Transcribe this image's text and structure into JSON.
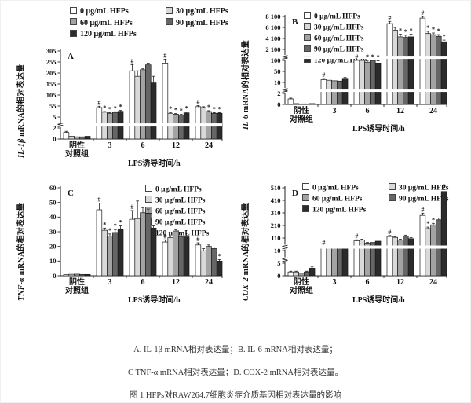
{
  "figure": {
    "legend_items": [
      "0 μg/mL HFPs",
      "30 μg/mL HFPs",
      "60 μg/mL HFPs",
      "90 μg/mL HFPs",
      "120 μg/mL HFPs"
    ],
    "series_colors": [
      "#ffffff",
      "#d9d9d9",
      "#a3a3a3",
      "#666666",
      "#2b2b2b"
    ],
    "x_label": "LPS诱导时间/h",
    "caption": {
      "line1": "A. IL-1β mRNA相对表达量；B. IL-6 mRNA相对表达量；",
      "line2": "C TNF-α mRNA相对表达量；D. COX-2 mRNA相对表达量。",
      "line3": "图 1 HFPs对RAW264.7细胞炎症介质基因相对表达量的影响"
    }
  },
  "chart_data": [
    {
      "type": "bar",
      "panel": "A",
      "ylabel_gene": "IL-1β",
      "ylabel_rest": " mRNA的相对表达量",
      "xlabel": "LPS诱导时间/h",
      "yticks": [
        0,
        2,
        5,
        55,
        105,
        155,
        205,
        255,
        305
      ],
      "ytick_labels": [
        "0",
        "2",
        "5",
        "55",
        "105",
        "155",
        "205",
        "255",
        "305"
      ],
      "breaks": [
        {
          "after": 2,
          "band": true
        }
      ],
      "legend_layout": "above-2col",
      "categories": [
        "阴性\n对照组",
        "3",
        "6",
        "12",
        "24"
      ],
      "groups": [
        {
          "values": [
            1.2,
            0.5,
            0.4,
            0.4,
            0.5
          ],
          "errors": [
            0.2,
            0.1,
            0.1,
            0.1,
            0.1
          ],
          "marks": [
            "",
            "",
            "",
            "",
            ""
          ]
        },
        {
          "values": [
            48,
            27,
            22,
            26,
            31
          ],
          "errors": [
            6,
            3,
            3,
            3,
            4
          ],
          "marks": [
            "#",
            "*",
            "*",
            "*",
            "*"
          ]
        },
        {
          "values": [
            215,
            190,
            220,
            242,
            160
          ],
          "errors": [
            28,
            25,
            6,
            8,
            30
          ],
          "marks": [
            "#",
            "",
            "",
            "",
            ""
          ]
        },
        {
          "values": [
            250,
            22,
            18,
            14,
            24
          ],
          "errors": [
            18,
            4,
            3,
            3,
            4
          ],
          "marks": [
            "#",
            "*",
            "*",
            "*",
            "*"
          ]
        },
        {
          "values": [
            52,
            48,
            30,
            22,
            22
          ],
          "errors": [
            5,
            4,
            4,
            3,
            3
          ],
          "marks": [
            "#",
            "",
            "*",
            "*",
            "*"
          ]
        }
      ]
    },
    {
      "type": "bar",
      "panel": "B",
      "ylabel_gene": "IL-6",
      "ylabel_rest": " mRNA的相对表达量",
      "xlabel": "LPS诱导时间/h",
      "yticks": [
        0,
        2,
        10,
        50,
        100,
        2100,
        4100,
        6100,
        8100
      ],
      "ytick_labels": [
        "0",
        "2",
        "10",
        "50",
        "100",
        "2 100",
        "4 100",
        "6 100",
        "8 100"
      ],
      "breaks": [
        {
          "after": 2,
          "band": true
        },
        {
          "after": 100,
          "band": true
        }
      ],
      "legend_layout": "inside-1col",
      "categories": [
        "阴性\n对照组",
        "3",
        "6",
        "12",
        "24"
      ],
      "groups": [
        {
          "values": [
            1.0,
            0.15,
            0.1,
            0.1,
            0.15
          ],
          "errors": [
            0.15,
            0.05,
            0.05,
            0.05,
            0.05
          ],
          "marks": [
            "",
            "",
            "",
            "",
            ""
          ]
        },
        {
          "values": [
            20,
            18,
            16,
            15,
            25
          ],
          "errors": [
            4,
            2,
            2,
            2,
            3
          ],
          "marks": [
            "#",
            "",
            "",
            "",
            ""
          ]
        },
        {
          "values": [
            105,
            100,
            92,
            100,
            88
          ],
          "errors": [
            15,
            10,
            10,
            10,
            10
          ],
          "marks": [
            "#",
            "",
            "*",
            "*",
            "*"
          ]
        },
        {
          "values": [
            6800,
            5600,
            4400,
            4300,
            4400
          ],
          "errors": [
            400,
            500,
            500,
            400,
            500
          ],
          "marks": [
            "#",
            "",
            "*",
            "*",
            "*"
          ]
        },
        {
          "values": [
            7800,
            5000,
            4800,
            4500,
            3500
          ],
          "errors": [
            500,
            400,
            300,
            300,
            300
          ],
          "marks": [
            "#",
            "*",
            "*",
            "*",
            "*"
          ]
        }
      ]
    },
    {
      "type": "bar",
      "panel": "C",
      "ylabel_gene": "TNF-α",
      "ylabel_rest": " mRNA的相对表达量",
      "xlabel": "LPS诱导时间/h",
      "yticks": [
        0,
        10,
        20,
        30,
        40,
        50,
        60
      ],
      "ytick_labels": [
        "0",
        "10",
        "20",
        "30",
        "40",
        "50",
        "60"
      ],
      "breaks": [],
      "legend_layout": "inside-1col",
      "categories": [
        "阴性\n对照组",
        "3",
        "6",
        "12",
        "24"
      ],
      "groups": [
        {
          "values": [
            0.8,
            1.0,
            1.1,
            0.9,
            0.9
          ],
          "errors": [
            0.1,
            0.1,
            0.1,
            0.1,
            0.1
          ],
          "marks": [
            "",
            "",
            "",
            "",
            ""
          ]
        },
        {
          "values": [
            45,
            31,
            27,
            29.5,
            31.5
          ],
          "errors": [
            4.5,
            1.5,
            1.5,
            2,
            2.5
          ],
          "marks": [
            "#",
            "*",
            "*",
            "*",
            "*"
          ]
        },
        {
          "values": [
            38.5,
            39,
            43,
            42.5,
            32.5
          ],
          "errors": [
            6,
            12,
            3.5,
            3,
            1.5
          ],
          "marks": [
            "#",
            "",
            "",
            "",
            ""
          ]
        },
        {
          "values": [
            23,
            26,
            30.5,
            26.5,
            26.5
          ],
          "errors": [
            1.5,
            1,
            1,
            3,
            2.5
          ],
          "marks": [
            "#",
            "",
            "",
            "",
            ""
          ]
        },
        {
          "values": [
            21,
            17,
            20,
            18.5,
            10
          ],
          "errors": [
            1.5,
            1.5,
            1,
            1,
            1
          ],
          "marks": [
            "#",
            "",
            "",
            "",
            "*"
          ]
        }
      ]
    },
    {
      "type": "bar",
      "panel": "D",
      "ylabel_gene": "COX-2",
      "ylabel_rest": " mRNA的相对表达量",
      "xlabel": "LPS诱导时间/h",
      "yticks": [
        0,
        5,
        10,
        110,
        210,
        310,
        410,
        510
      ],
      "ytick_labels": [
        "0",
        "5",
        "10",
        "110",
        "210",
        "310",
        "410",
        "510"
      ],
      "breaks": [
        {
          "after": 5,
          "band": false
        },
        {
          "after": 10,
          "band": true
        }
      ],
      "legend_layout": "inside-2col",
      "categories": [
        "阴性\n对照组",
        "3",
        "6",
        "12",
        "24"
      ],
      "groups": [
        {
          "values": [
            1.5,
            1.5,
            1.0,
            1.5,
            3.0
          ],
          "errors": [
            0.3,
            0.3,
            0.2,
            0.3,
            0.5
          ],
          "marks": [
            "",
            "",
            "",
            "",
            ""
          ]
        },
        {
          "values": [
            40,
            35,
            33,
            34,
            35
          ],
          "errors": [
            4,
            3,
            3,
            3,
            3
          ],
          "marks": [
            "#",
            "",
            "",
            "",
            ""
          ]
        },
        {
          "values": [
            88,
            95,
            70,
            75,
            85
          ],
          "errors": [
            8,
            6,
            5,
            5,
            5
          ],
          "marks": [
            "#",
            "",
            "",
            "",
            ""
          ]
        },
        {
          "values": [
            122,
            115,
            95,
            125,
            105
          ],
          "errors": [
            8,
            6,
            6,
            8,
            8
          ],
          "marks": [
            "#",
            "",
            "",
            "",
            ""
          ]
        },
        {
          "values": [
            290,
            185,
            215,
            255,
            480
          ],
          "errors": [
            18,
            12,
            12,
            15,
            15
          ],
          "marks": [
            "#",
            "*",
            "*",
            "",
            "*"
          ]
        }
      ]
    }
  ]
}
